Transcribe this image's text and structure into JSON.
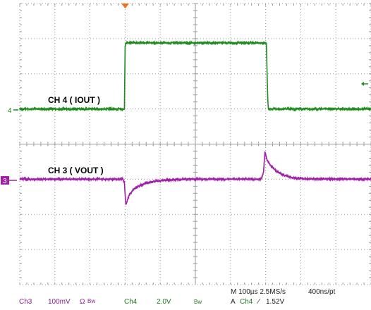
{
  "chart_data": {
    "type": "line",
    "title": "",
    "x_unit": "µs",
    "xlim": [
      -198,
      802
    ],
    "series": [
      {
        "name": "CH 4 ( IOUT )",
        "channel": "4",
        "color": "#1f8a1f",
        "x": [
          -198,
          100,
          102,
          104,
          108,
          500,
          504,
          508,
          510,
          802
        ],
        "level_div": [
          0,
          0,
          1.8,
          1.92,
          1.92,
          1.92,
          1.9,
          0.3,
          0,
          0
        ]
      },
      {
        "name": "CH 3 ( VOUT )",
        "channel": "3",
        "color": "#a020a8",
        "x": [
          -198,
          95,
          100,
          104,
          108,
          115,
          125,
          140,
          160,
          190,
          230,
          280,
          480,
          490,
          496,
          500,
          506,
          516,
          530,
          550,
          580,
          620,
          802
        ],
        "level_div": [
          0,
          0,
          -0.2,
          -1.48,
          -1.2,
          -0.85,
          -0.6,
          -0.4,
          -0.22,
          -0.1,
          -0.04,
          0,
          0,
          0.04,
          0.4,
          1.55,
          1.1,
          0.8,
          0.5,
          0.25,
          0.08,
          0.02,
          0
        ]
      }
    ],
    "grid": true
  },
  "labels": {
    "ch4": "CH 4 ( IOUT )",
    "ch3": "CH 3 ( VOUT )",
    "marker4": "4",
    "marker3": "3"
  },
  "status": {
    "ch3_name": "Ch3",
    "ch3_scale": "100mV",
    "ch3_sym": "Ω",
    "ch3_bw": "Bw",
    "ch4_name": "Ch4",
    "ch4_scale": "2.0V",
    "ch4_bw": "Bw",
    "timebase": "M 100µs 2.5MS/s",
    "resolution": "400ns/pt",
    "trigger_mode": "A",
    "trigger_src": "Ch4",
    "trigger_slope": "⁄",
    "trigger_level": "1.52V"
  },
  "colors": {
    "grid": "#9a9a9a",
    "ch3": "#a020a8",
    "ch4": "#1f8a1f",
    "trigger": "#f07020"
  }
}
